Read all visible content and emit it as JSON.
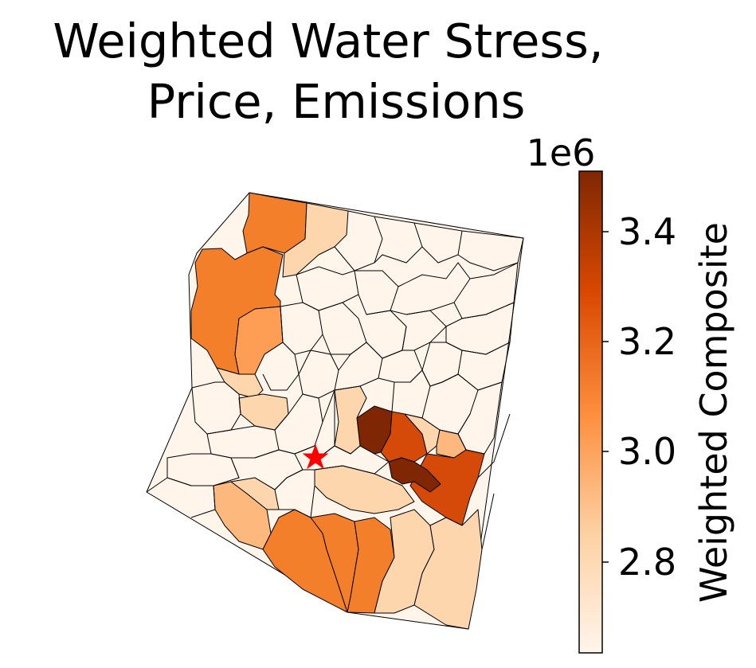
{
  "title_line1": "Weighted Water Stress,",
  "title_line2": "Price, Emissions",
  "colorbar": {
    "label": "Weighted Composite",
    "exponent": "1e6",
    "min": 2.65,
    "max": 3.5,
    "ticks": [
      "2.8",
      "3.0",
      "3.2",
      "3.4"
    ],
    "colors": [
      "#fff5eb",
      "#fdd0a2",
      "#fd8d3c",
      "#d94801",
      "#7f2704"
    ]
  },
  "marker": {
    "symbol": "star",
    "color": "#ff0000"
  },
  "colors": {
    "lowest": "#fff5eb",
    "light": "#fdd6ae",
    "mid_light": "#fdb97d",
    "mid": "#fd9e54",
    "orange": "#f47f2b",
    "dark_orange": "#d54a09",
    "darkest": "#7f2704"
  }
}
